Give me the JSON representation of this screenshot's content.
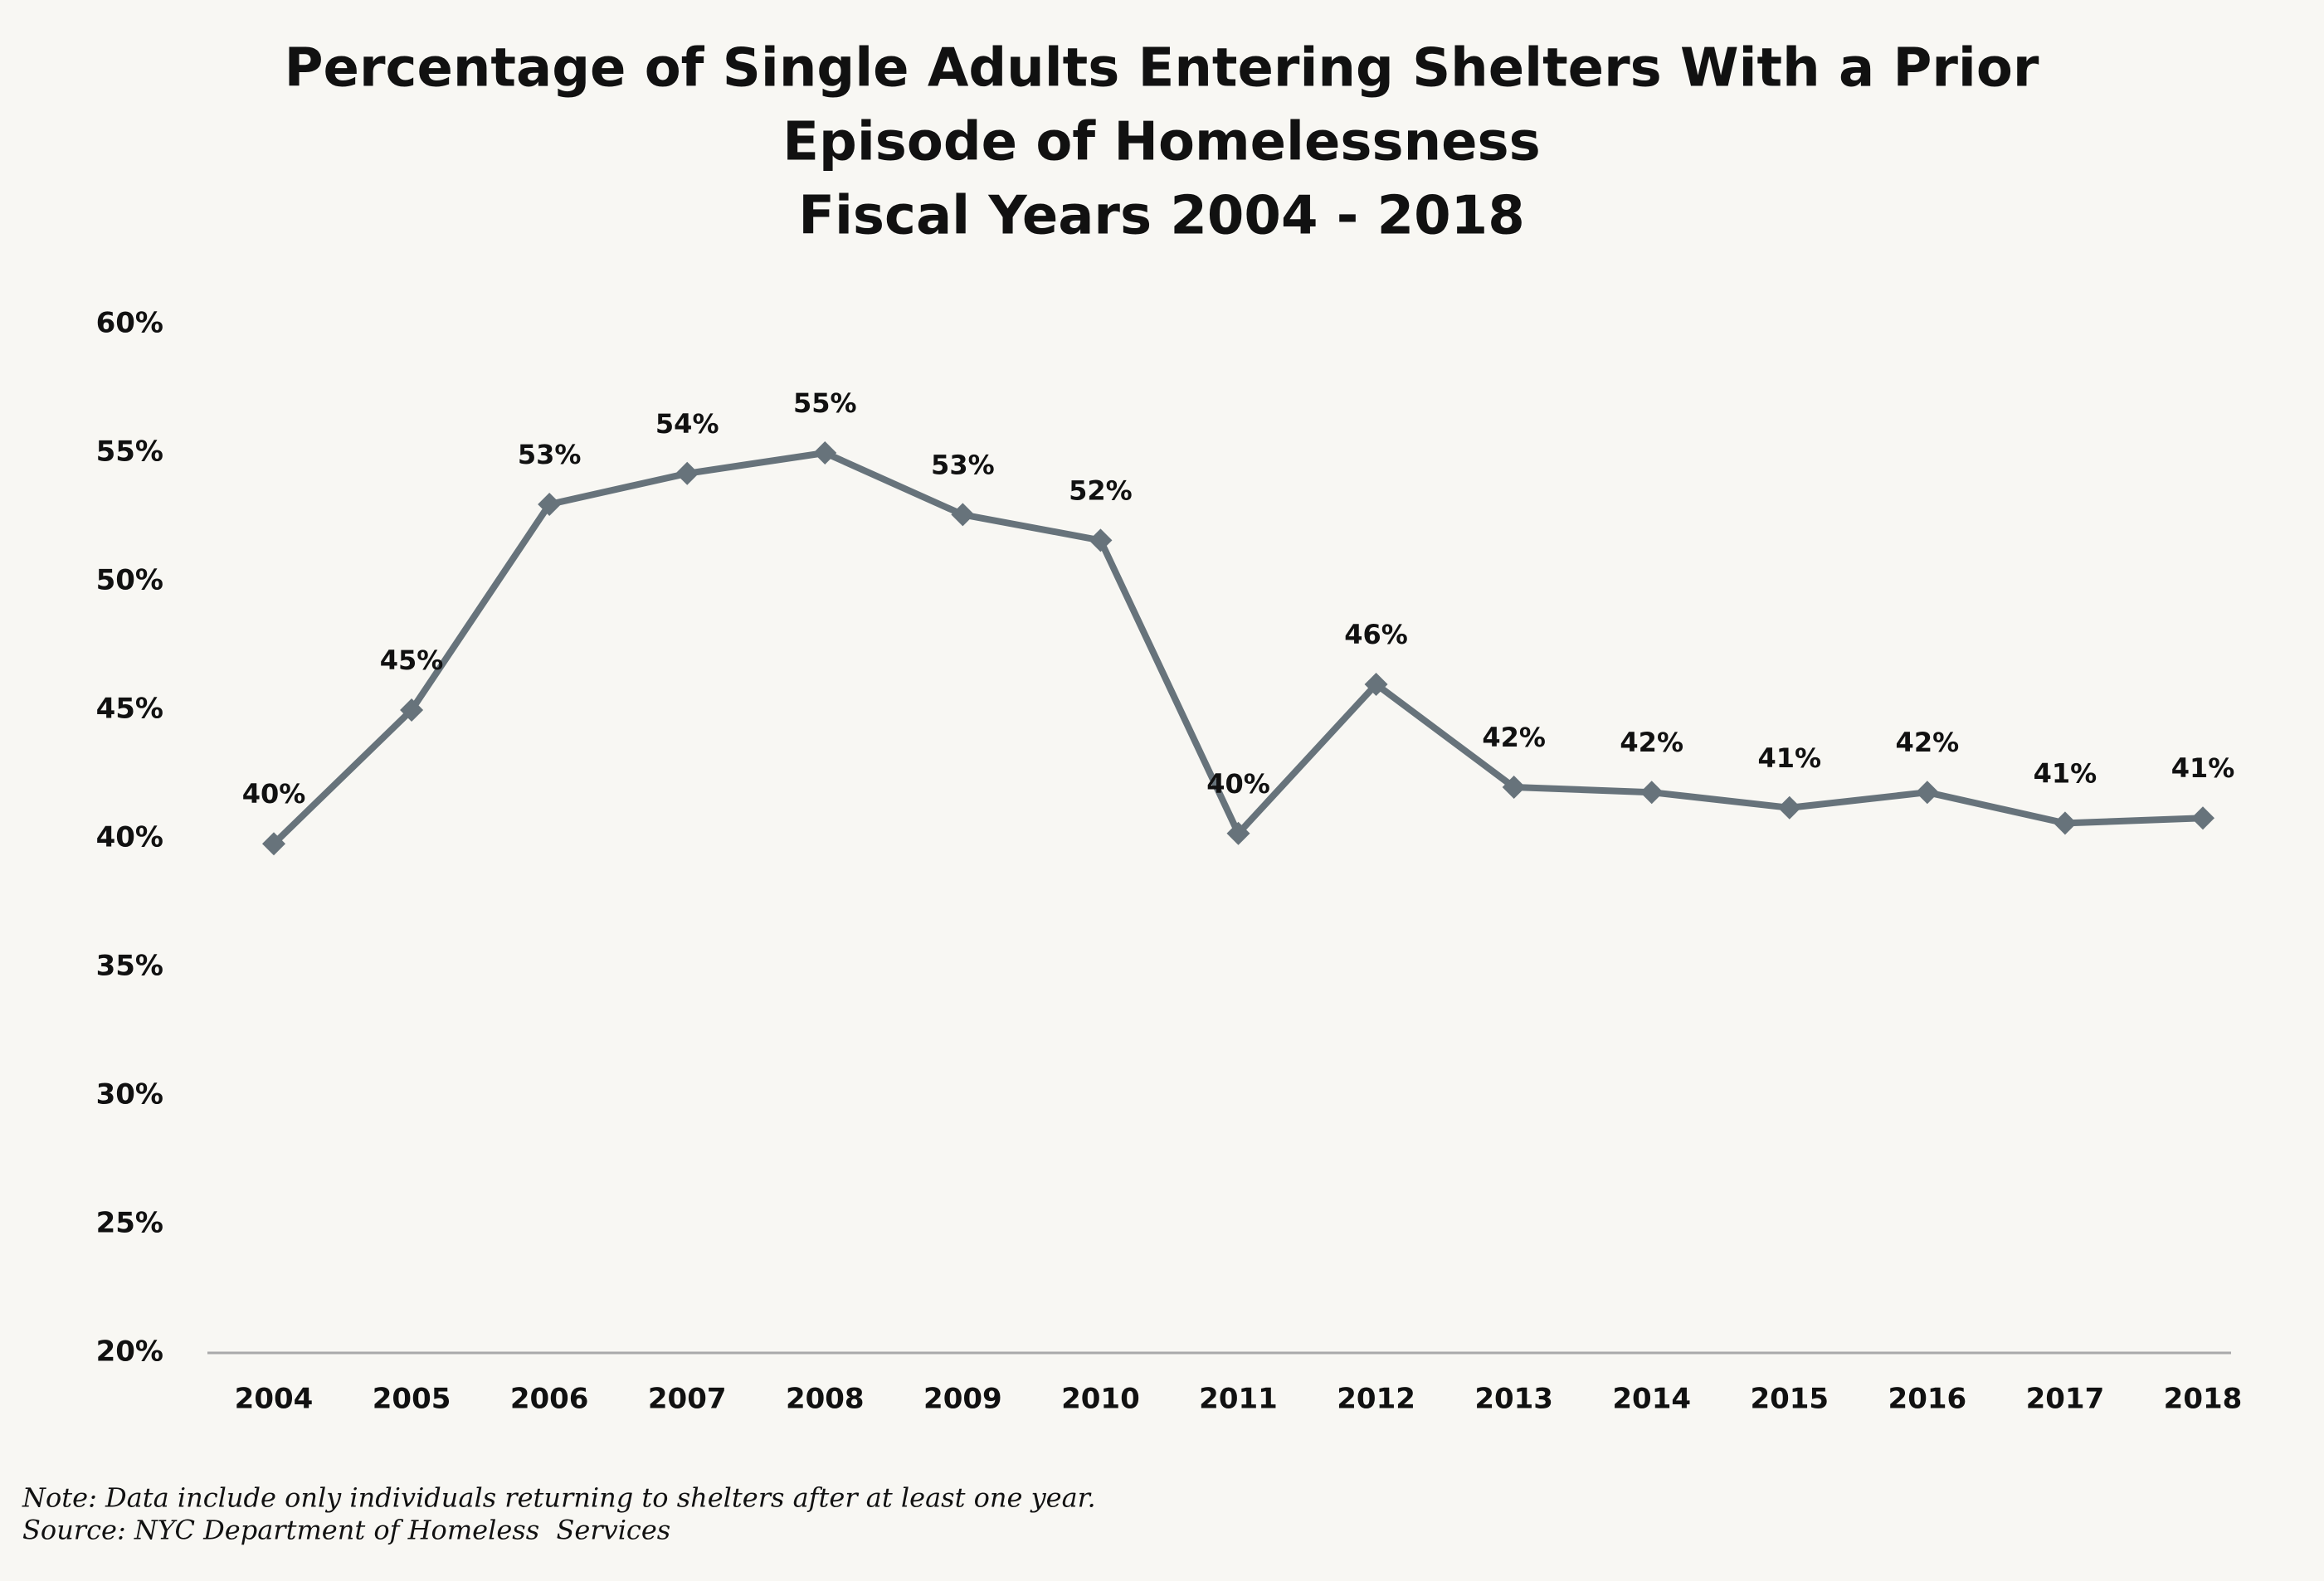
{
  "chart_data": {
    "type": "line",
    "title": [
      "Percentage of Single Adults Entering Shelters With a Prior",
      "Episode of Homelessness",
      "Fiscal Years 2004 - 2018"
    ],
    "categories": [
      "2004",
      "2005",
      "2006",
      "2007",
      "2008",
      "2009",
      "2010",
      "2011",
      "2012",
      "2013",
      "2014",
      "2015",
      "2016",
      "2017",
      "2018"
    ],
    "series": [
      {
        "color": "#67737b",
        "values": [
          39.8,
          45.0,
          53.0,
          54.2,
          55.0,
          52.6,
          51.6,
          40.2,
          46.0,
          42.0,
          41.8,
          41.2,
          41.8,
          40.6,
          40.8
        ],
        "value_labels": [
          "40%",
          "45%",
          "53%",
          "54%",
          "55%",
          "53%",
          "52%",
          "40%",
          "46%",
          "42%",
          "42%",
          "41%",
          "42%",
          "41%",
          "41%"
        ]
      }
    ],
    "ylim": [
      20,
      60
    ],
    "yticks": [
      {
        "value": 20,
        "label": "20%"
      },
      {
        "value": 25,
        "label": "25%"
      },
      {
        "value": 30,
        "label": "30%"
      },
      {
        "value": 35,
        "label": "35%"
      },
      {
        "value": 40,
        "label": "40%"
      },
      {
        "value": 45,
        "label": "45%"
      },
      {
        "value": 50,
        "label": "50%"
      },
      {
        "value": 55,
        "label": "55%"
      },
      {
        "value": 60,
        "label": "60%"
      }
    ],
    "grid": false,
    "note": "Note: Data include only individuals returning to shelters after at least one year.",
    "source": "Source: NYC Department of Homeless  Services"
  }
}
